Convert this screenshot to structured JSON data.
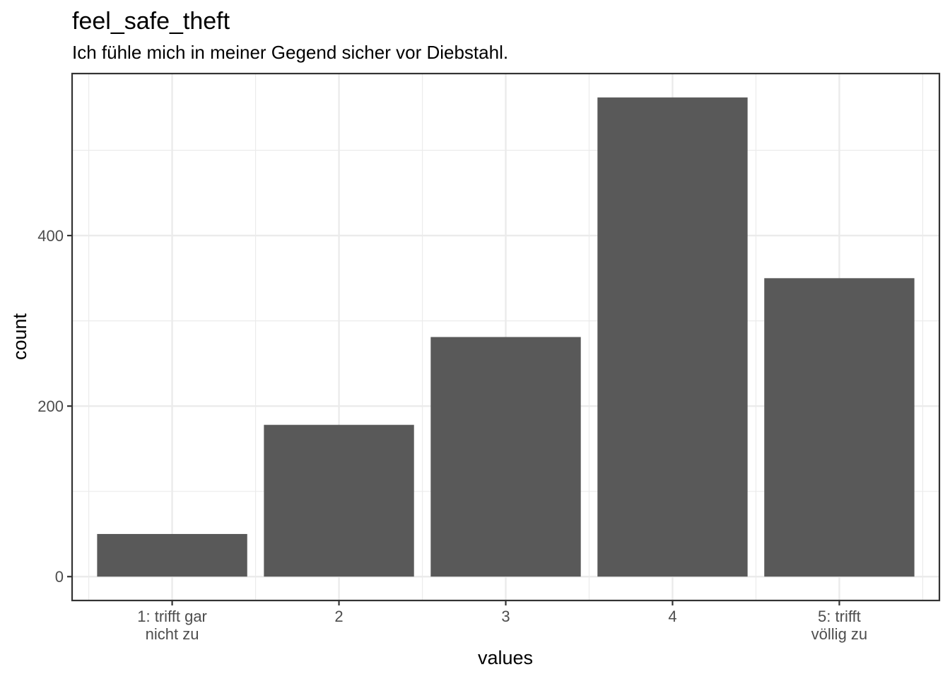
{
  "chart_data": {
    "type": "bar",
    "title": "feel_safe_theft",
    "subtitle": "Ich fühle mich in meiner Gegend sicher vor Diebstahl.",
    "xlabel": "values",
    "ylabel": "count",
    "categories": [
      [
        "1: trifft gar",
        "nicht zu"
      ],
      [
        "2"
      ],
      [
        "3"
      ],
      [
        "4"
      ],
      [
        "5: trifft",
        "völlig zu"
      ]
    ],
    "values": [
      50,
      178,
      281,
      562,
      350
    ],
    "y_ticks": [
      0,
      200,
      400
    ],
    "ylim": [
      -28,
      590
    ],
    "grid": true,
    "colors": {
      "bar": "#595959",
      "grid": "#ebebeb",
      "border": "#333333",
      "tick_text": "#4d4d4d"
    }
  }
}
